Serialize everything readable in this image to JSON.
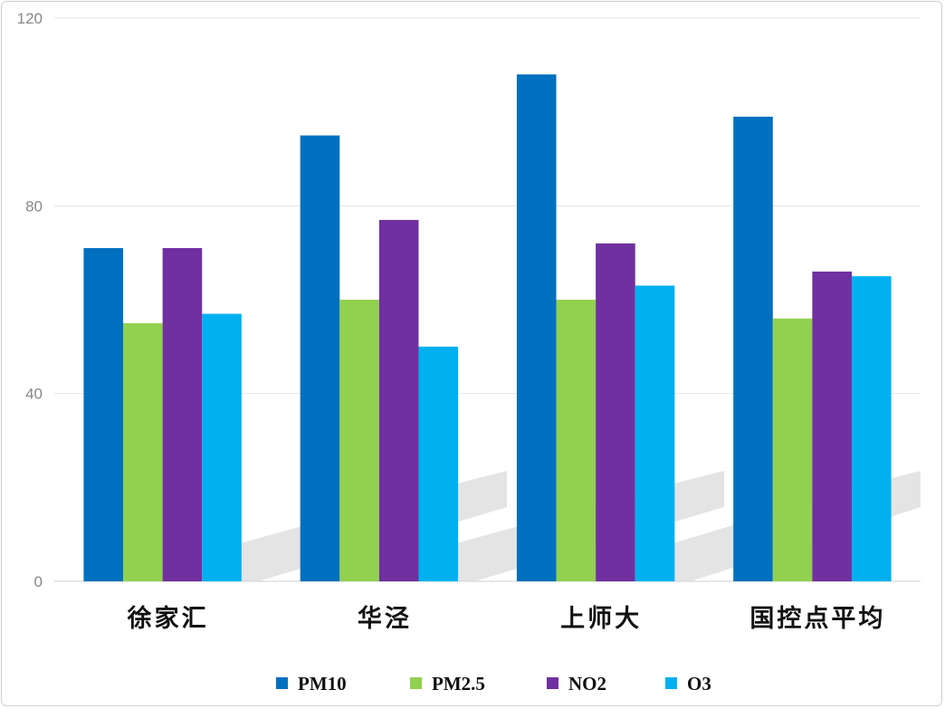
{
  "chart_data": {
    "type": "bar",
    "title": "",
    "xlabel": "",
    "ylabel": "",
    "categories": [
      "徐家汇",
      "华泾",
      "上师大",
      "国控点平均"
    ],
    "series": [
      {
        "name": "PM10",
        "color": "#0070C0",
        "values": [
          71,
          95,
          108,
          99
        ]
      },
      {
        "name": "PM2.5",
        "color": "#92D050",
        "values": [
          55,
          60,
          60,
          56
        ]
      },
      {
        "name": "NO2",
        "color": "#7030A0",
        "values": [
          71,
          77,
          72,
          66
        ]
      },
      {
        "name": "O3",
        "color": "#00B0F0",
        "values": [
          57,
          50,
          63,
          65
        ]
      }
    ],
    "ylim": [
      0,
      120
    ],
    "yticks": [
      0,
      40,
      80,
      120
    ],
    "grid": true,
    "legend_position": "bottom"
  }
}
